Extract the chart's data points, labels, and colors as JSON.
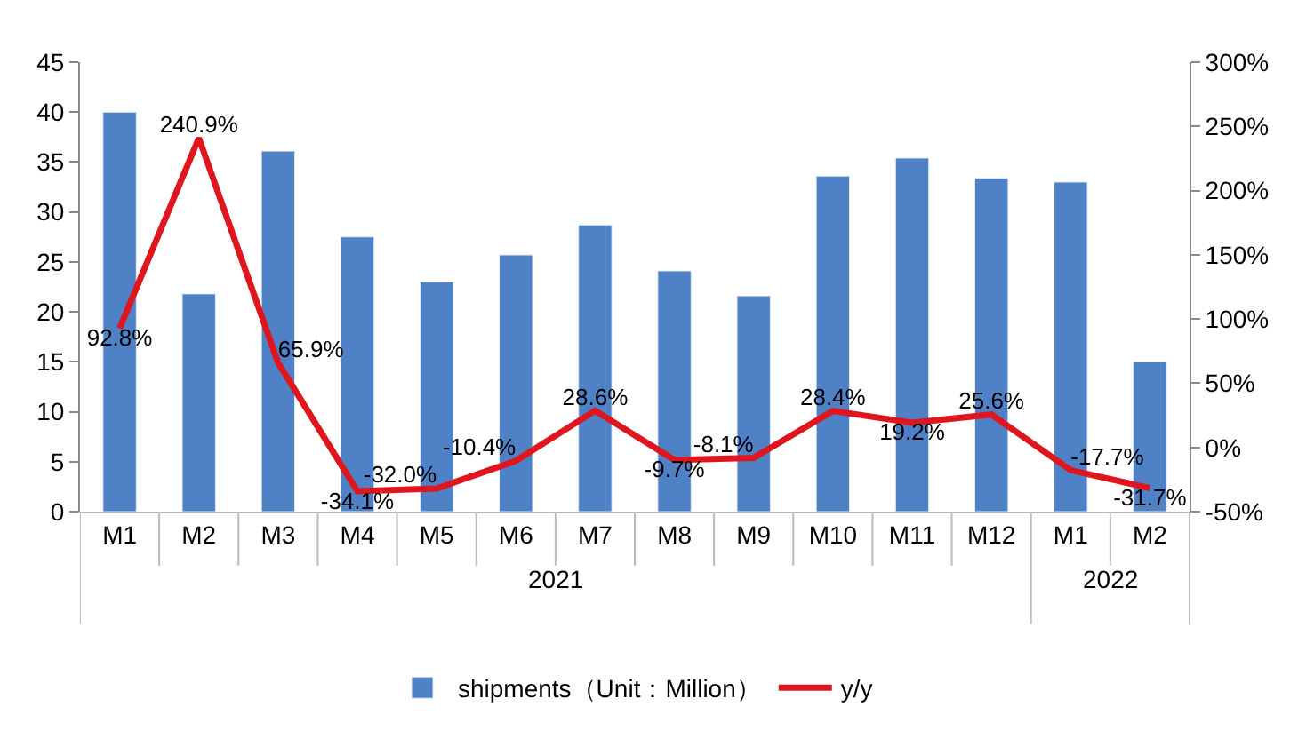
{
  "chart_data": {
    "type": "bar",
    "categories": [
      "M1",
      "M2",
      "M3",
      "M4",
      "M5",
      "M6",
      "M7",
      "M8",
      "M9",
      "M10",
      "M11",
      "M12",
      "M1",
      "M2"
    ],
    "series": [
      {
        "name": "shipments（Unit：Million）",
        "color": "#4f81c7",
        "values": [
          40.0,
          21.8,
          36.1,
          27.5,
          23.0,
          25.7,
          28.7,
          24.1,
          21.6,
          33.6,
          35.4,
          33.4,
          33.0,
          15.0
        ]
      },
      {
        "name": "y/y",
        "type": "line",
        "axis": "y2",
        "color": "#e0161f",
        "values": [
          92.8,
          240.9,
          65.9,
          -34.1,
          -32.0,
          -10.4,
          28.6,
          -9.7,
          -8.1,
          28.4,
          19.2,
          25.6,
          -17.7,
          -31.7
        ],
        "value_labels": [
          "92.8%",
          "240.9%",
          "65.9%",
          "-34.1%",
          "-32.0%",
          "-10.4%",
          "28.6%",
          "-9.7%",
          "-8.1%",
          "28.4%",
          "19.2%",
          "25.6%",
          "-17.7%",
          "-31.7%"
        ],
        "marker": "none",
        "line_style": "solid"
      }
    ],
    "ylim": [
      0,
      45
    ],
    "yticks": [
      0,
      5,
      10,
      15,
      20,
      25,
      30,
      35,
      40,
      45
    ],
    "y2lim": [
      -50,
      300
    ],
    "y2ticks": [
      {
        "value": -50,
        "label": "-50%"
      },
      {
        "value": 0,
        "label": "0%"
      },
      {
        "value": 50,
        "label": "50%"
      },
      {
        "value": 100,
        "label": "100%"
      },
      {
        "value": 150,
        "label": "150%"
      },
      {
        "value": 200,
        "label": "200%"
      },
      {
        "value": 250,
        "label": "250%"
      },
      {
        "value": 300,
        "label": "300%"
      }
    ],
    "annotations": [
      "2021",
      "2022"
    ],
    "legend": "bottom"
  }
}
